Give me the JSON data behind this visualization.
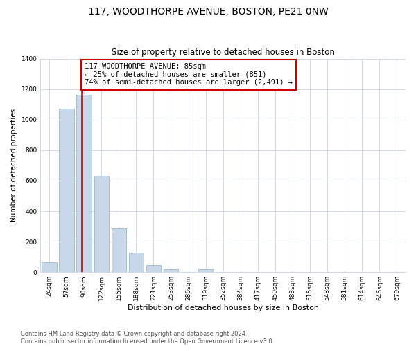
{
  "title": "117, WOODTHORPE AVENUE, BOSTON, PE21 0NW",
  "subtitle": "Size of property relative to detached houses in Boston",
  "xlabel": "Distribution of detached houses by size in Boston",
  "ylabel": "Number of detached properties",
  "bin_labels": [
    "24sqm",
    "57sqm",
    "90sqm",
    "122sqm",
    "155sqm",
    "188sqm",
    "221sqm",
    "253sqm",
    "286sqm",
    "319sqm",
    "352sqm",
    "384sqm",
    "417sqm",
    "450sqm",
    "483sqm",
    "515sqm",
    "548sqm",
    "581sqm",
    "614sqm",
    "646sqm",
    "679sqm"
  ],
  "bar_values": [
    65,
    1070,
    1160,
    630,
    285,
    130,
    48,
    20,
    0,
    18,
    0,
    0,
    0,
    0,
    0,
    0,
    0,
    0,
    0,
    0,
    0
  ],
  "bar_color": "#c8d8e8",
  "bar_edge_color": "#a0b8cc",
  "annotation_text_line0": "117 WOODTHORPE AVENUE: 85sqm",
  "annotation_text_line1": "← 25% of detached houses are smaller (851)",
  "annotation_text_line2": "74% of semi-detached houses are larger (2,491) →",
  "annotation_box_facecolor": "#ffffff",
  "annotation_box_edgecolor": "#cc0000",
  "vline_color": "#cc0000",
  "vline_x": 1.88,
  "ylim": [
    0,
    1400
  ],
  "yticks": [
    0,
    200,
    400,
    600,
    800,
    1000,
    1200,
    1400
  ],
  "footer_line1": "Contains HM Land Registry data © Crown copyright and database right 2024.",
  "footer_line2": "Contains public sector information licensed under the Open Government Licence v3.0.",
  "title_fontsize": 10,
  "subtitle_fontsize": 8.5,
  "xlabel_fontsize": 8,
  "ylabel_fontsize": 7.5,
  "tick_fontsize": 6.5,
  "annotation_fontsize": 7.5,
  "footer_fontsize": 6
}
